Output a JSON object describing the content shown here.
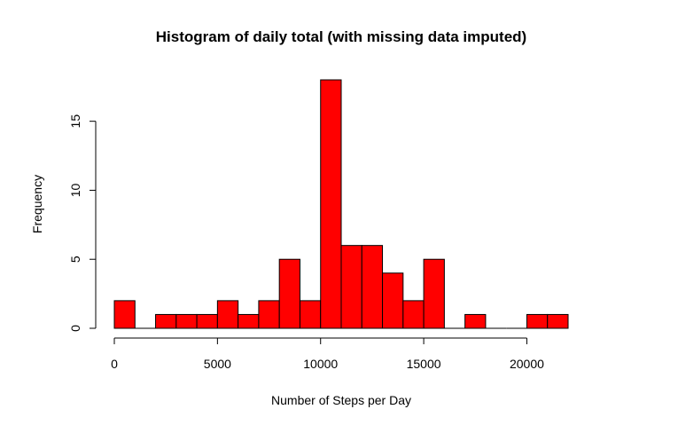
{
  "chart_data": {
    "type": "bar",
    "title": "Histogram of daily total (with missing data imputed)",
    "xlabel": "Number of Steps per Day",
    "ylabel": "Frequency",
    "bar_color": "#ff0000",
    "bin_width": 1000,
    "bins": [
      [
        0,
        1000
      ],
      [
        1000,
        2000
      ],
      [
        2000,
        3000
      ],
      [
        3000,
        4000
      ],
      [
        4000,
        5000
      ],
      [
        5000,
        6000
      ],
      [
        6000,
        7000
      ],
      [
        7000,
        8000
      ],
      [
        8000,
        9000
      ],
      [
        9000,
        10000
      ],
      [
        10000,
        11000
      ],
      [
        11000,
        12000
      ],
      [
        12000,
        13000
      ],
      [
        13000,
        14000
      ],
      [
        14000,
        15000
      ],
      [
        15000,
        16000
      ],
      [
        16000,
        17000
      ],
      [
        17000,
        18000
      ],
      [
        18000,
        19000
      ],
      [
        19000,
        20000
      ],
      [
        20000,
        21000
      ],
      [
        21000,
        22000
      ]
    ],
    "values": [
      2,
      0,
      1,
      1,
      1,
      2,
      1,
      2,
      5,
      2,
      18,
      6,
      6,
      4,
      2,
      5,
      0,
      1,
      0,
      0,
      1,
      1
    ],
    "xlim": [
      0,
      22000
    ],
    "ylim": [
      0,
      18
    ],
    "x_ticks": [
      0,
      5000,
      10000,
      15000,
      20000
    ],
    "x_tick_labels": [
      "0",
      "5000",
      "10000",
      "15000",
      "20000"
    ],
    "y_ticks": [
      0,
      5,
      10,
      15
    ],
    "y_tick_labels": [
      "0",
      "5",
      "10",
      "15"
    ],
    "grid": false
  }
}
